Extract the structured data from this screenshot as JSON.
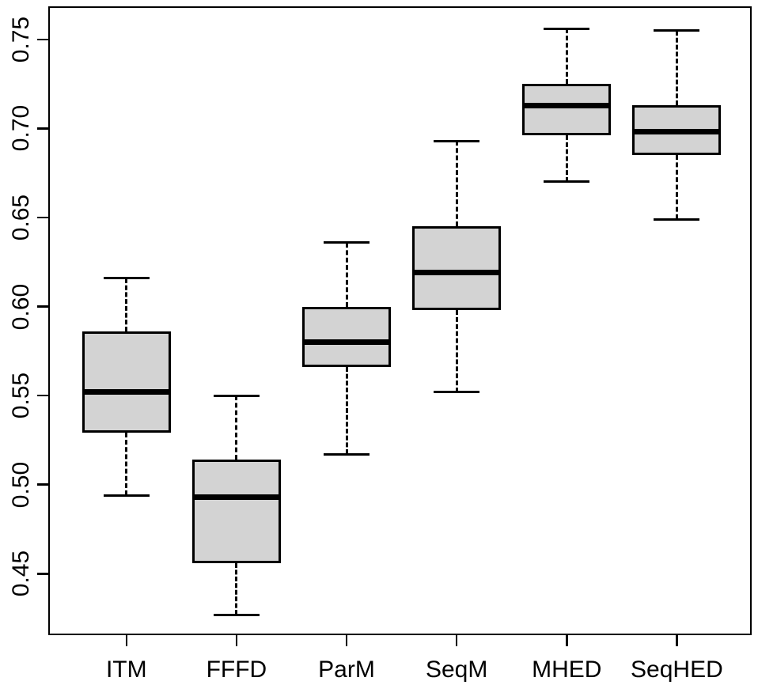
{
  "figure": {
    "background": "#ffffff",
    "title": ""
  },
  "chart_data": {
    "type": "boxplot",
    "title": "",
    "xlabel": "",
    "ylabel": "",
    "categories": [
      "ITM",
      "FFFD",
      "ParM",
      "SeqM",
      "MHED",
      "SeqHED"
    ],
    "boxes": [
      {
        "label": "ITM",
        "whisker_low": 0.494,
        "q1": 0.529,
        "median": 0.552,
        "q3": 0.586,
        "whisker_high": 0.616
      },
      {
        "label": "FFFD",
        "whisker_low": 0.427,
        "q1": 0.456,
        "median": 0.493,
        "q3": 0.514,
        "whisker_high": 0.55
      },
      {
        "label": "ParM",
        "whisker_low": 0.517,
        "q1": 0.566,
        "median": 0.58,
        "q3": 0.6,
        "whisker_high": 0.636
      },
      {
        "label": "SeqM",
        "whisker_low": 0.552,
        "q1": 0.598,
        "median": 0.619,
        "q3": 0.645,
        "whisker_high": 0.693
      },
      {
        "label": "MHED",
        "whisker_low": 0.67,
        "q1": 0.696,
        "median": 0.713,
        "q3": 0.725,
        "whisker_high": 0.756
      },
      {
        "label": "SeqHED",
        "whisker_low": 0.649,
        "q1": 0.685,
        "median": 0.698,
        "q3": 0.713,
        "whisker_high": 0.755
      }
    ],
    "y_ticks": [
      "0.45",
      "0.50",
      "0.55",
      "0.60",
      "0.65",
      "0.70",
      "0.75"
    ],
    "y_tick_values": [
      0.45,
      0.5,
      0.55,
      0.6,
      0.65,
      0.7,
      0.75
    ],
    "ylim": [
      0.4155,
      0.7686
    ],
    "xlim": [
      0.29,
      6.68
    ],
    "grid": false,
    "legend": false,
    "outliers": [],
    "box_fill": "#d3d3d3",
    "line_color": "#000000",
    "layout": {
      "y_tick_labels_rotated": true,
      "whisker_style": "dashed",
      "frame": "full-box"
    }
  }
}
